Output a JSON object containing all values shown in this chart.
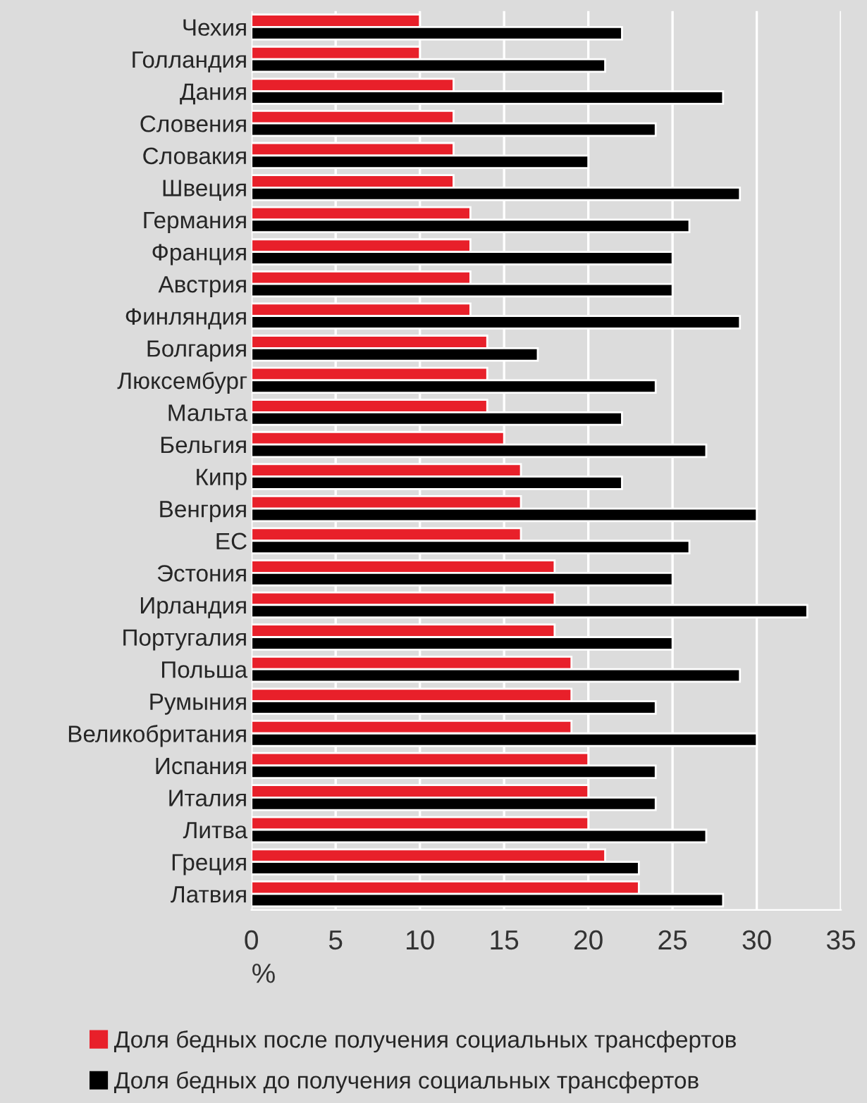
{
  "chart_data": {
    "type": "bar",
    "orientation": "horizontal",
    "categories": [
      "Чехия",
      "Голландия",
      "Дания",
      "Словения",
      "Словакия",
      "Швеция",
      "Германия",
      "Франция",
      "Австрия",
      "Финляндия",
      "Болгария",
      "Люксембург",
      "Мальта",
      "Бельгия",
      "Кипр",
      "Венгрия",
      "ЕС",
      "Эстония",
      "Ирландия",
      "Португалия",
      "Польша",
      "Румыния",
      "Великобритания",
      "Испания",
      "Италия",
      "Литва",
      "Греция",
      "Латвия"
    ],
    "series": [
      {
        "name": "Доля бедных после получения социальных трансфертов",
        "color": "#e8202a",
        "values": [
          10,
          10,
          12,
          12,
          12,
          12,
          13,
          13,
          13,
          13,
          14,
          14,
          14,
          15,
          16,
          16,
          16,
          18,
          18,
          18,
          19,
          19,
          19,
          20,
          20,
          20,
          21,
          23
        ]
      },
      {
        "name": "Доля бедных до получения социальных трансфертов",
        "color": "#000000",
        "values": [
          22,
          21,
          28,
          24,
          20,
          29,
          26,
          25,
          25,
          29,
          17,
          24,
          22,
          27,
          22,
          30,
          26,
          25,
          33,
          25,
          29,
          24,
          30,
          24,
          24,
          27,
          23,
          28
        ]
      }
    ],
    "xlabel": "%",
    "xlim": [
      0,
      35
    ],
    "xticks": [
      0,
      5,
      10,
      15,
      20,
      25,
      30,
      35
    ],
    "grid": "x",
    "legend": "bottom"
  }
}
